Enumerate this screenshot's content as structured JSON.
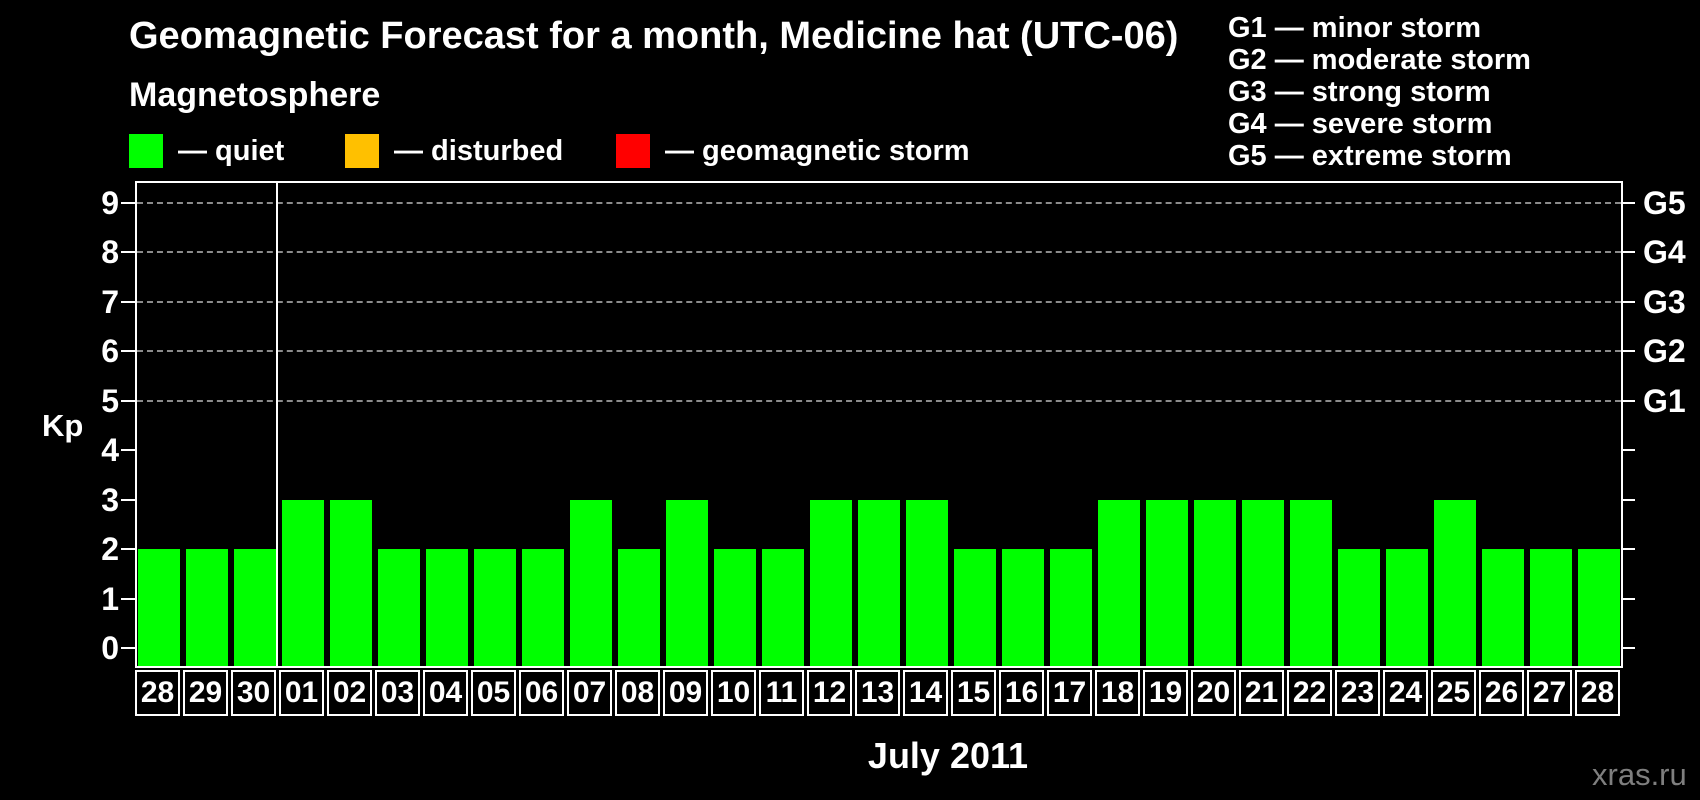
{
  "title": "Geomagnetic Forecast for a month, Medicine hat (UTC-06)",
  "subtitle": "Magnetosphere",
  "legend": {
    "items": [
      {
        "name": "quiet",
        "label": "— quiet",
        "color": "#00ff00"
      },
      {
        "name": "disturbed",
        "label": "— disturbed",
        "color": "#ffc000"
      },
      {
        "name": "storm",
        "label": "— geomagnetic storm",
        "color": "#ff0000"
      }
    ]
  },
  "g_scale": [
    "G1 — minor storm",
    "G2 — moderate storm",
    "G3 — strong storm",
    "G4 — severe storm",
    "G5 — extreme storm"
  ],
  "kp_axis_title": "Kp",
  "x_axis_title": "July 2011",
  "watermark": "xras.ru",
  "colors": {
    "background": "#000000",
    "text": "#ffffff",
    "grid": "#8c8c8c",
    "watermark": "#7f7f7f"
  },
  "chart_data": {
    "type": "bar",
    "title": "Geomagnetic Forecast for a month, Medicine hat (UTC-06)",
    "xlabel": "July 2011",
    "ylabel": "Kp",
    "ylim": [
      0,
      9
    ],
    "yticks": [
      0,
      1,
      2,
      3,
      4,
      5,
      6,
      7,
      8,
      9
    ],
    "grid_on": true,
    "gridline_kp": [
      5,
      6,
      7,
      8,
      9
    ],
    "legend_position": "top",
    "right_axis": [
      {
        "kp": 5,
        "label": "G1"
      },
      {
        "kp": 6,
        "label": "G2"
      },
      {
        "kp": 7,
        "label": "G3"
      },
      {
        "kp": 8,
        "label": "G4"
      },
      {
        "kp": 9,
        "label": "G5"
      }
    ],
    "categories": [
      "28",
      "29",
      "30",
      "01",
      "02",
      "03",
      "04",
      "05",
      "06",
      "07",
      "08",
      "09",
      "10",
      "11",
      "12",
      "13",
      "14",
      "15",
      "16",
      "17",
      "18",
      "19",
      "20",
      "21",
      "22",
      "23",
      "24",
      "25",
      "26",
      "27",
      "28"
    ],
    "values": [
      2,
      2,
      2,
      3,
      3,
      2,
      2,
      2,
      2,
      3,
      2,
      3,
      2,
      2,
      3,
      3,
      3,
      2,
      2,
      2,
      3,
      3,
      3,
      3,
      3,
      2,
      2,
      3,
      2,
      2,
      2
    ],
    "month_boundary_after_index": 2,
    "bar_color": "#00ff00"
  }
}
